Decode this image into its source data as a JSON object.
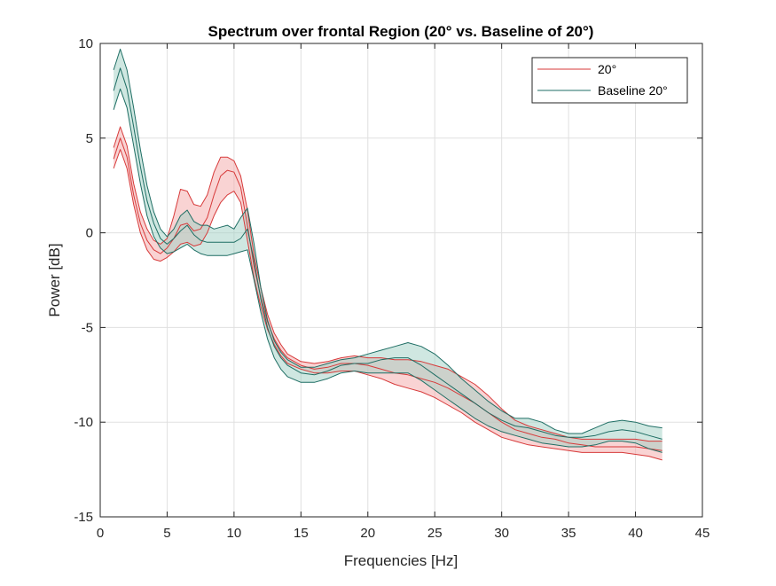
{
  "chart_data": {
    "type": "line",
    "title": "Spectrum over frontal Region (20° vs. Baseline of 20°)",
    "xlabel": "Frequencies [Hz]",
    "ylabel": "Power [dB]",
    "xlim": [
      0,
      45
    ],
    "ylim": [
      -15,
      10
    ],
    "xticks": [
      "0",
      "5",
      "10",
      "15",
      "20",
      "25",
      "30",
      "35",
      "40",
      "45"
    ],
    "yticks": [
      "-15",
      "-10",
      "-5",
      "0",
      "5",
      "10"
    ],
    "grid": true,
    "legend_position": "top-right",
    "series": [
      {
        "name": "20°",
        "color": "#d73a3a",
        "fill": "#f4a7a7",
        "x": [
          1,
          1.5,
          2,
          2.5,
          3,
          3.5,
          4,
          4.5,
          5,
          5.5,
          6,
          6.5,
          7,
          7.5,
          8,
          8.5,
          9,
          9.5,
          10,
          10.5,
          11,
          11.5,
          12,
          12.5,
          13,
          13.5,
          14,
          15,
          16,
          17,
          18,
          19,
          20,
          21,
          22,
          23,
          24,
          25,
          26,
          27,
          28,
          29,
          30,
          31,
          32,
          33,
          34,
          35,
          36,
          37,
          38,
          39,
          40,
          41,
          42
        ],
        "mean": [
          3.9,
          5.0,
          4.0,
          2.0,
          0.5,
          -0.4,
          -0.9,
          -1.1,
          -0.8,
          -0.3,
          0.4,
          0.5,
          0.1,
          0.2,
          0.8,
          2.0,
          3.0,
          3.3,
          3.2,
          2.4,
          0.4,
          -1.8,
          -3.4,
          -4.7,
          -5.6,
          -6.2,
          -6.6,
          -7.0,
          -7.2,
          -7.1,
          -6.9,
          -6.9,
          -7.0,
          -7.2,
          -7.4,
          -7.5,
          -7.7,
          -7.9,
          -8.2,
          -8.6,
          -9.0,
          -9.5,
          -10.0,
          -10.4,
          -10.6,
          -10.8,
          -10.9,
          -11.1,
          -11.2,
          -11.3,
          -11.3,
          -11.3,
          -11.3,
          -11.4,
          -11.5
        ],
        "upper": [
          4.5,
          5.6,
          4.6,
          2.6,
          1.1,
          0.2,
          -0.4,
          -0.6,
          -0.3,
          0.9,
          2.3,
          2.2,
          1.5,
          1.4,
          2.0,
          3.2,
          4.0,
          4.0,
          3.8,
          3.0,
          1.2,
          -1.2,
          -2.9,
          -4.3,
          -5.3,
          -5.9,
          -6.4,
          -6.8,
          -6.9,
          -6.8,
          -6.6,
          -6.5,
          -6.6,
          -6.6,
          -6.7,
          -6.7,
          -6.8,
          -7.0,
          -7.2,
          -7.6,
          -8.0,
          -8.6,
          -9.3,
          -9.9,
          -10.2,
          -10.4,
          -10.6,
          -10.8,
          -10.9,
          -10.9,
          -10.9,
          -10.9,
          -10.9,
          -11.0,
          -11.0
        ],
        "lower": [
          3.4,
          4.4,
          3.4,
          1.5,
          0.0,
          -0.9,
          -1.4,
          -1.5,
          -1.3,
          -1.0,
          -0.6,
          -0.5,
          -0.7,
          -0.6,
          0.0,
          0.9,
          1.6,
          2.0,
          2.2,
          1.6,
          -0.4,
          -2.4,
          -3.9,
          -5.1,
          -5.9,
          -6.5,
          -6.9,
          -7.2,
          -7.4,
          -7.4,
          -7.3,
          -7.3,
          -7.5,
          -7.7,
          -8.0,
          -8.2,
          -8.4,
          -8.7,
          -9.1,
          -9.5,
          -10.0,
          -10.4,
          -10.8,
          -11.0,
          -11.2,
          -11.3,
          -11.4,
          -11.5,
          -11.6,
          -11.6,
          -11.6,
          -11.6,
          -11.7,
          -11.8,
          -12.0
        ]
      },
      {
        "name": "Baseline 20°",
        "color": "#1f6e64",
        "fill": "#9fd0c4",
        "x": [
          1,
          1.5,
          2,
          2.5,
          3,
          3.5,
          4,
          4.5,
          5,
          5.5,
          6,
          6.5,
          7,
          7.5,
          8,
          8.5,
          9,
          9.5,
          10,
          10.5,
          11,
          11.5,
          12,
          12.5,
          13,
          13.5,
          14,
          15,
          16,
          17,
          18,
          19,
          20,
          21,
          22,
          23,
          24,
          25,
          26,
          27,
          28,
          29,
          30,
          31,
          32,
          33,
          34,
          35,
          36,
          37,
          38,
          39,
          40,
          41,
          42
        ],
        "mean": [
          7.5,
          8.7,
          7.6,
          5.6,
          3.5,
          1.7,
          0.5,
          -0.3,
          -0.6,
          -0.3,
          0.1,
          0.4,
          -0.1,
          -0.4,
          -0.5,
          -0.5,
          -0.5,
          -0.5,
          -0.5,
          -0.3,
          0.2,
          -1.5,
          -3.5,
          -5.0,
          -6.0,
          -6.6,
          -7.0,
          -7.4,
          -7.5,
          -7.3,
          -7.0,
          -6.9,
          -6.9,
          -6.7,
          -6.6,
          -6.6,
          -7.0,
          -7.5,
          -8.0,
          -8.5,
          -9.0,
          -9.5,
          -9.9,
          -10.2,
          -10.3,
          -10.5,
          -10.7,
          -10.8,
          -10.8,
          -10.7,
          -10.5,
          -10.4,
          -10.5,
          -10.7,
          -10.9
        ],
        "upper": [
          8.6,
          9.7,
          8.6,
          6.6,
          4.4,
          2.5,
          1.1,
          0.2,
          -0.2,
          0.2,
          0.9,
          1.2,
          0.6,
          0.4,
          0.4,
          0.2,
          0.3,
          0.4,
          0.2,
          0.8,
          1.3,
          -0.6,
          -2.9,
          -4.6,
          -5.7,
          -6.3,
          -6.7,
          -7.1,
          -7.1,
          -6.9,
          -6.7,
          -6.6,
          -6.4,
          -6.2,
          -6.0,
          -5.8,
          -6.0,
          -6.4,
          -7.0,
          -7.7,
          -8.3,
          -8.9,
          -9.4,
          -9.8,
          -9.8,
          -10.0,
          -10.4,
          -10.6,
          -10.6,
          -10.3,
          -10.0,
          -9.9,
          -10.0,
          -10.2,
          -10.3
        ],
        "lower": [
          6.5,
          7.6,
          6.6,
          4.6,
          2.6,
          0.9,
          -0.2,
          -0.8,
          -1.1,
          -1.0,
          -0.8,
          -0.6,
          -0.9,
          -1.1,
          -1.2,
          -1.2,
          -1.2,
          -1.2,
          -1.1,
          -1.0,
          -0.9,
          -2.5,
          -4.2,
          -5.6,
          -6.6,
          -7.2,
          -7.6,
          -7.9,
          -7.9,
          -7.7,
          -7.4,
          -7.3,
          -7.4,
          -7.4,
          -7.4,
          -7.4,
          -7.8,
          -8.3,
          -8.8,
          -9.3,
          -9.8,
          -10.2,
          -10.5,
          -10.7,
          -10.9,
          -11.1,
          -11.2,
          -11.3,
          -11.3,
          -11.2,
          -11.0,
          -11.0,
          -11.1,
          -11.4,
          -11.6
        ]
      }
    ]
  }
}
